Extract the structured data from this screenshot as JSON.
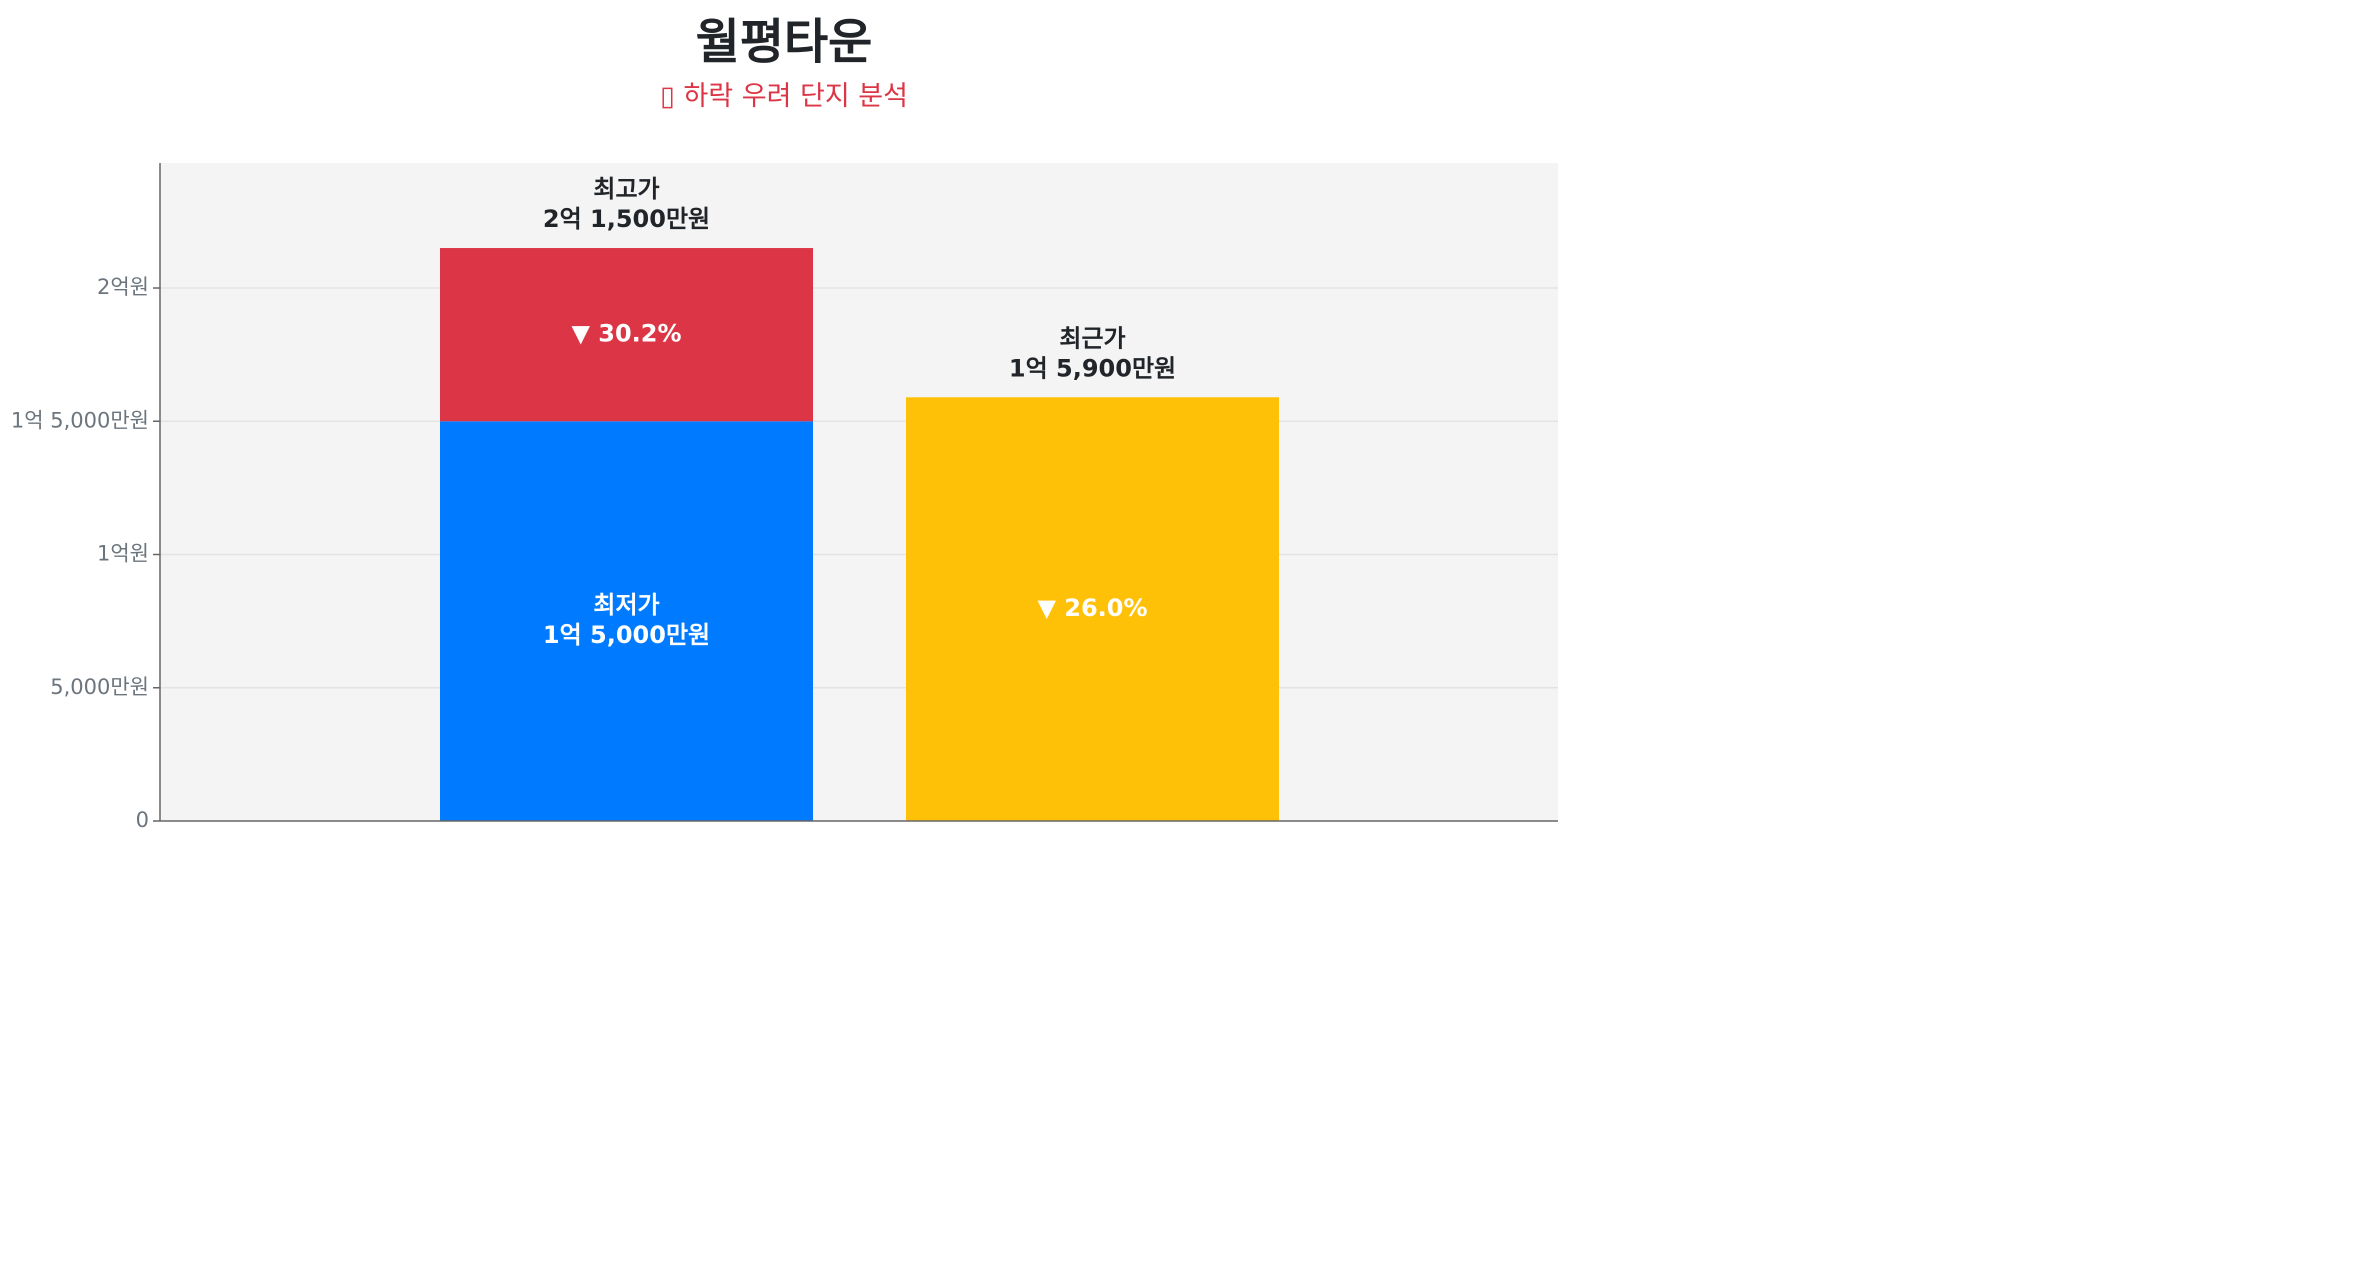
{
  "chart_data": {
    "type": "bar",
    "title": "월평타운",
    "subtitle": "▯ 하락 우려 단지 분석",
    "ylim": [
      0,
      24000
    ],
    "y_ticks": [
      {
        "value": 0,
        "label": "0"
      },
      {
        "value": 5000,
        "label": "5,000만원"
      },
      {
        "value": 10000,
        "label": "1억원"
      },
      {
        "value": 15000,
        "label": "1억 5,000만원"
      },
      {
        "value": 20000,
        "label": "2억원"
      }
    ],
    "unit": "만원",
    "grid": true,
    "bars": [
      {
        "segments": [
          {
            "name": "최저가",
            "from": 0,
            "to": 15000,
            "color": "#007bff",
            "label_lines": [
              "최저가",
              "1억 5,000만원"
            ]
          },
          {
            "name": "최고가",
            "from": 15000,
            "to": 21500,
            "color": "#dc3545",
            "label_lines": [
              "▼ 30.2%"
            ]
          }
        ],
        "top_label_lines": [
          "최고가",
          "2억 1,500만원"
        ]
      },
      {
        "segments": [
          {
            "name": "최근가",
            "from": 0,
            "to": 15900,
            "color": "#ffc107",
            "label_lines": [
              "▼ 26.0%"
            ]
          }
        ],
        "top_label_lines": [
          "최근가",
          "1억 5,900만원"
        ]
      }
    ],
    "colors": {
      "plot_bg": "#f4f4f4",
      "grid": "#e3e3e3",
      "axis": "#666666",
      "tick_text": "#6c757d",
      "label_dark": "#212529",
      "label_light": "#ffffff"
    }
  }
}
